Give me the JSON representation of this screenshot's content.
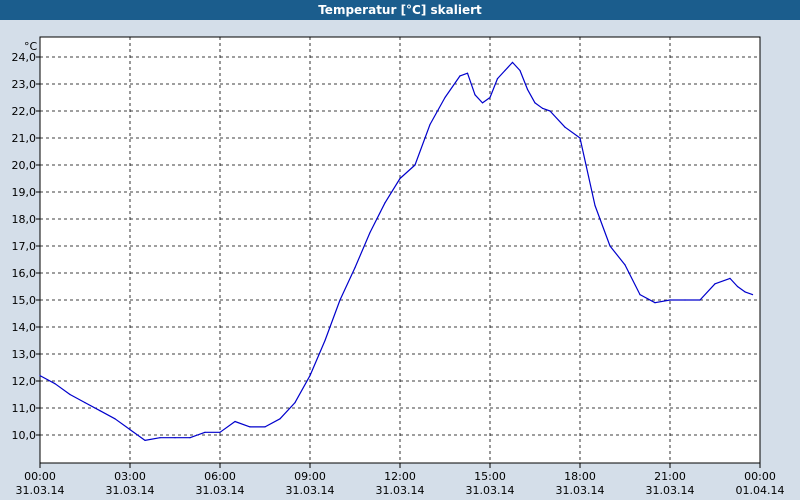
{
  "window": {
    "title": "Temperatur [°C] skaliert"
  },
  "chart_data": {
    "type": "line",
    "title": "Temperatur [°C] skaliert",
    "ylabel": "°C",
    "xlabel": "",
    "ylim": [
      9.0,
      24.5
    ],
    "yticks": [
      "10,0",
      "11,0",
      "12,0",
      "13,0",
      "14,0",
      "15,0",
      "16,0",
      "17,0",
      "18,0",
      "19,0",
      "20,0",
      "21,0",
      "22,0",
      "23,0",
      "24,0"
    ],
    "xlim_hours": [
      0,
      24
    ],
    "xticks": [
      {
        "time": "00:00",
        "date": "31.03.14"
      },
      {
        "time": "03:00",
        "date": "31.03.14"
      },
      {
        "time": "06:00",
        "date": "31.03.14"
      },
      {
        "time": "09:00",
        "date": "31.03.14"
      },
      {
        "time": "12:00",
        "date": "31.03.14"
      },
      {
        "time": "15:00",
        "date": "31.03.14"
      },
      {
        "time": "18:00",
        "date": "31.03.14"
      },
      {
        "time": "21:00",
        "date": "31.03.14"
      },
      {
        "time": "00:00",
        "date": "01.04.14"
      }
    ],
    "grid": true,
    "series": [
      {
        "color": "#0000cc",
        "x": [
          "00:00",
          "00:30",
          "01:00",
          "01:30",
          "02:00",
          "02:30",
          "03:00",
          "03:30",
          "04:00",
          "04:30",
          "05:00",
          "05:30",
          "06:00",
          "06:30",
          "07:00",
          "07:30",
          "08:00",
          "08:30",
          "09:00",
          "09:30",
          "10:00",
          "10:30",
          "11:00",
          "11:30",
          "12:00",
          "12:30",
          "13:00",
          "13:30",
          "14:00",
          "14:15",
          "14:30",
          "14:45",
          "15:00",
          "15:15",
          "15:30",
          "15:45",
          "16:00",
          "16:15",
          "16:30",
          "16:45",
          "17:00",
          "17:30",
          "18:00",
          "18:30",
          "19:00",
          "19:30",
          "20:00",
          "20:30",
          "21:00",
          "21:30",
          "22:00",
          "22:30",
          "23:00",
          "23:15",
          "23:30",
          "23:45"
        ],
        "y": [
          12.2,
          11.9,
          11.5,
          11.2,
          10.9,
          10.6,
          10.2,
          9.8,
          9.9,
          9.9,
          9.9,
          10.1,
          10.1,
          10.5,
          10.3,
          10.3,
          10.6,
          11.2,
          12.2,
          13.5,
          15.0,
          16.2,
          17.5,
          18.6,
          19.5,
          20.0,
          21.5,
          22.5,
          23.3,
          23.4,
          22.6,
          22.3,
          22.5,
          23.2,
          23.5,
          23.8,
          23.5,
          22.8,
          22.3,
          22.1,
          22.0,
          21.4,
          21.0,
          18.5,
          17.0,
          16.3,
          15.2,
          14.9,
          15.0,
          15.0,
          15.0,
          15.6,
          15.8,
          15.5,
          15.3,
          15.2
        ]
      }
    ]
  }
}
